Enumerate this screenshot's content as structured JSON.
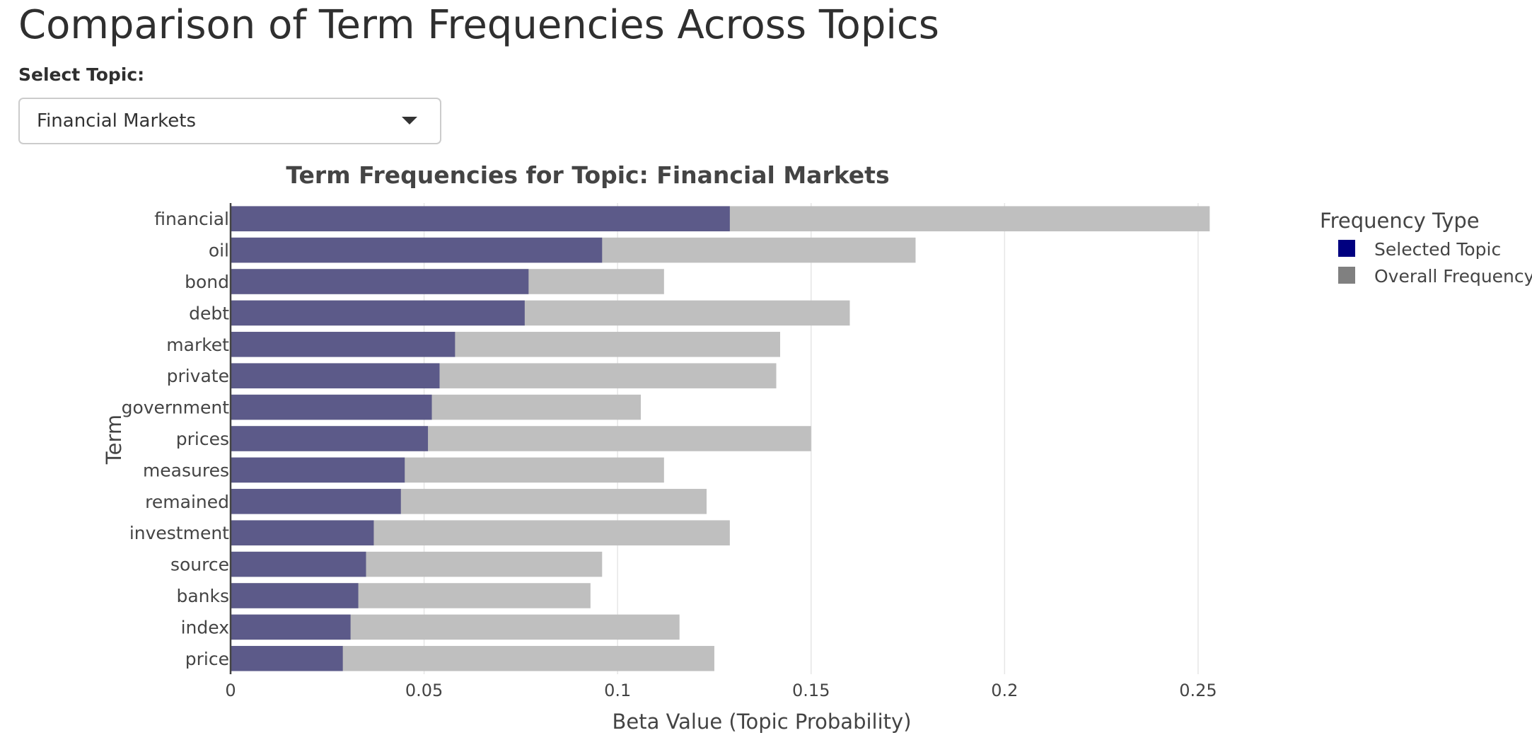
{
  "page": {
    "title": "Comparison of Term Frequencies Across Topics"
  },
  "controls": {
    "topic_label": "Select Topic:",
    "topic_selected": "Financial Markets",
    "caret_icon": "chevron-down-icon"
  },
  "colors": {
    "selected_topic": "#000080",
    "overall_frequency": "#808080",
    "selected_topic_bar_rendered": "#5c5a89",
    "overall_frequency_bar_rendered": "#bfbfbf"
  },
  "chart_data": {
    "type": "bar",
    "orientation": "horizontal",
    "barmode": "overlay",
    "title": "Term Frequencies for Topic: Financial Markets",
    "xlabel": "Beta Value (Topic Probability)",
    "ylabel": "Term",
    "xlim": [
      0,
      0.265
    ],
    "xticks": [
      0,
      0.05,
      0.1,
      0.15,
      0.2,
      0.25
    ],
    "xtick_labels": [
      "0",
      "0.05",
      "0.1",
      "0.15",
      "0.2",
      "0.25"
    ],
    "grid": "vertical",
    "legend": {
      "title": "Frequency Type",
      "placement": "top-right, outside plot"
    },
    "categories": [
      "financial",
      "oil",
      "bond",
      "debt",
      "market",
      "private",
      "government",
      "prices",
      "measures",
      "remained",
      "investment",
      "source",
      "banks",
      "index",
      "price"
    ],
    "series": [
      {
        "name": "Selected Topic",
        "color": "#000080",
        "values": [
          0.129,
          0.096,
          0.077,
          0.076,
          0.058,
          0.054,
          0.052,
          0.051,
          0.045,
          0.044,
          0.037,
          0.035,
          0.033,
          0.031,
          0.029
        ]
      },
      {
        "name": "Overall Frequency",
        "color": "#808080",
        "values": [
          0.253,
          0.177,
          0.112,
          0.16,
          0.142,
          0.141,
          0.106,
          0.15,
          0.112,
          0.123,
          0.129,
          0.096,
          0.093,
          0.116,
          0.125
        ]
      }
    ]
  }
}
